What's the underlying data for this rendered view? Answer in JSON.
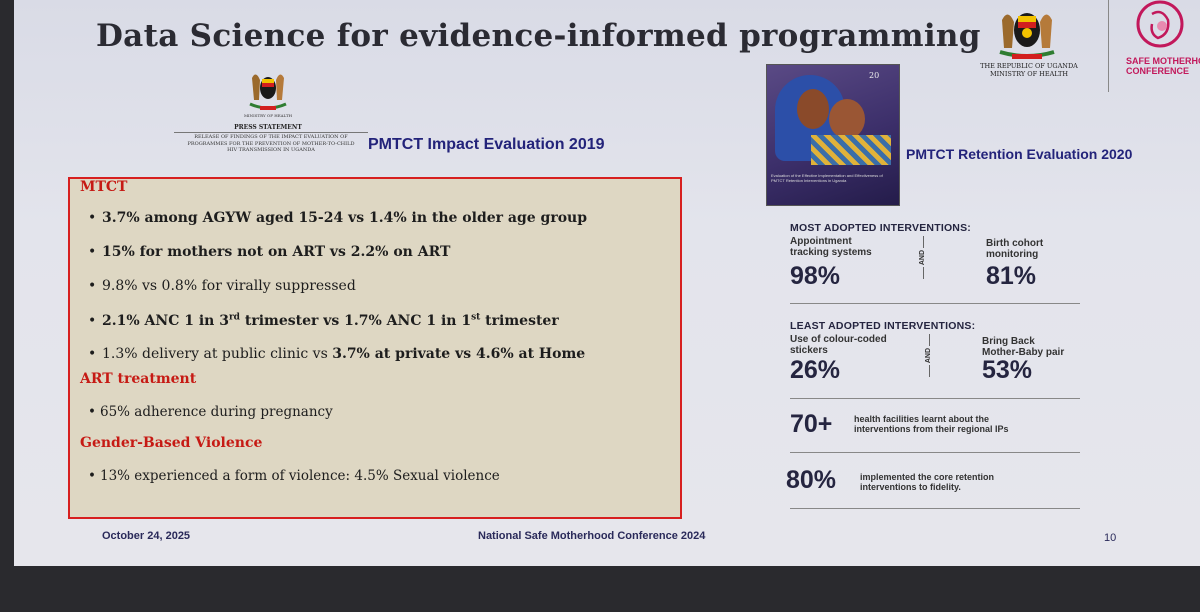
{
  "title": "Data Science for evidence-informed programming",
  "header": {
    "gov_line1": "THE REPUBLIC OF UGANDA",
    "gov_line2": "MINISTRY OF HEALTH",
    "smc_line1": "SAFE MOTHERHOOD",
    "smc_line2": "CONFERENCE"
  },
  "press": {
    "moh": "MINISTRY OF HEALTH",
    "title": "PRESS STATEMENT",
    "release_line1": "Release of findings of the impact evaluation of",
    "release_line2": "programmes for the prevention of mother-to-child",
    "release_line3": "HIV transmission in Uganda"
  },
  "left_heading": "PMTCT Impact Evaluation 2019",
  "findings": {
    "mtct_head": "MTCT",
    "b1": "3.7% among AGYW aged 15-24 vs 1.4% in the older age group",
    "b2": "15% for mothers not on ART  vs 2.2% on ART",
    "b3": "9.8% vs 0.8% for virally suppressed",
    "b4_part1": "2.1% ANC 1 in 3",
    "b4_sup1": "rd",
    "b4_part2": " trimester vs 1.7% ANC 1 in 1",
    "b4_sup2": "st",
    "b4_part3": " trimester",
    "b5_part1": "1.3% delivery at public clinic vs ",
    "b5_part2": "3.7% at private vs 4.6% at Home",
    "art_head": "ART treatment",
    "art_b1": "65% adherence during pregnancy",
    "gbv_head": "Gender-Based Violence",
    "gbv_b1": "13% experienced a form of violence: 4.5% Sexual violence"
  },
  "report_cover": {
    "badge": "20",
    "caption": "Evaluation of the Effective Implementation and Effectiveness of PMTCT Retention Interventions in Uganda"
  },
  "right_heading": "PMTCT Retention Evaluation 2020",
  "retention": {
    "most_head": "MOST ADOPTED INTERVENTIONS:",
    "most_a_label_1": "Appointment",
    "most_a_label_2": "tracking systems",
    "most_a_value": "98%",
    "most_b_label_1": "Birth cohort",
    "most_b_label_2": "monitoring",
    "most_b_value": "81%",
    "and": "AND",
    "least_head": "LEAST ADOPTED INTERVENTIONS:",
    "least_a_label_1": "Use of colour-coded",
    "least_a_label_2": "stickers",
    "least_a_value": "26%",
    "least_b_label_1": "Bring Back",
    "least_b_label_2": "Mother-Baby pair",
    "least_b_value": "53%",
    "stat1_value": "70+",
    "stat1_text_1": "health facilities learnt about the",
    "stat1_text_2": "interventions from their regional IPs",
    "stat2_value": "80%",
    "stat2_text_1": "implemented the core retention",
    "stat2_text_2": "interventions to fidelity."
  },
  "footer": {
    "date": "October 24, 2025",
    "event": "National Safe Motherhood Conference 2024",
    "page": "10"
  }
}
